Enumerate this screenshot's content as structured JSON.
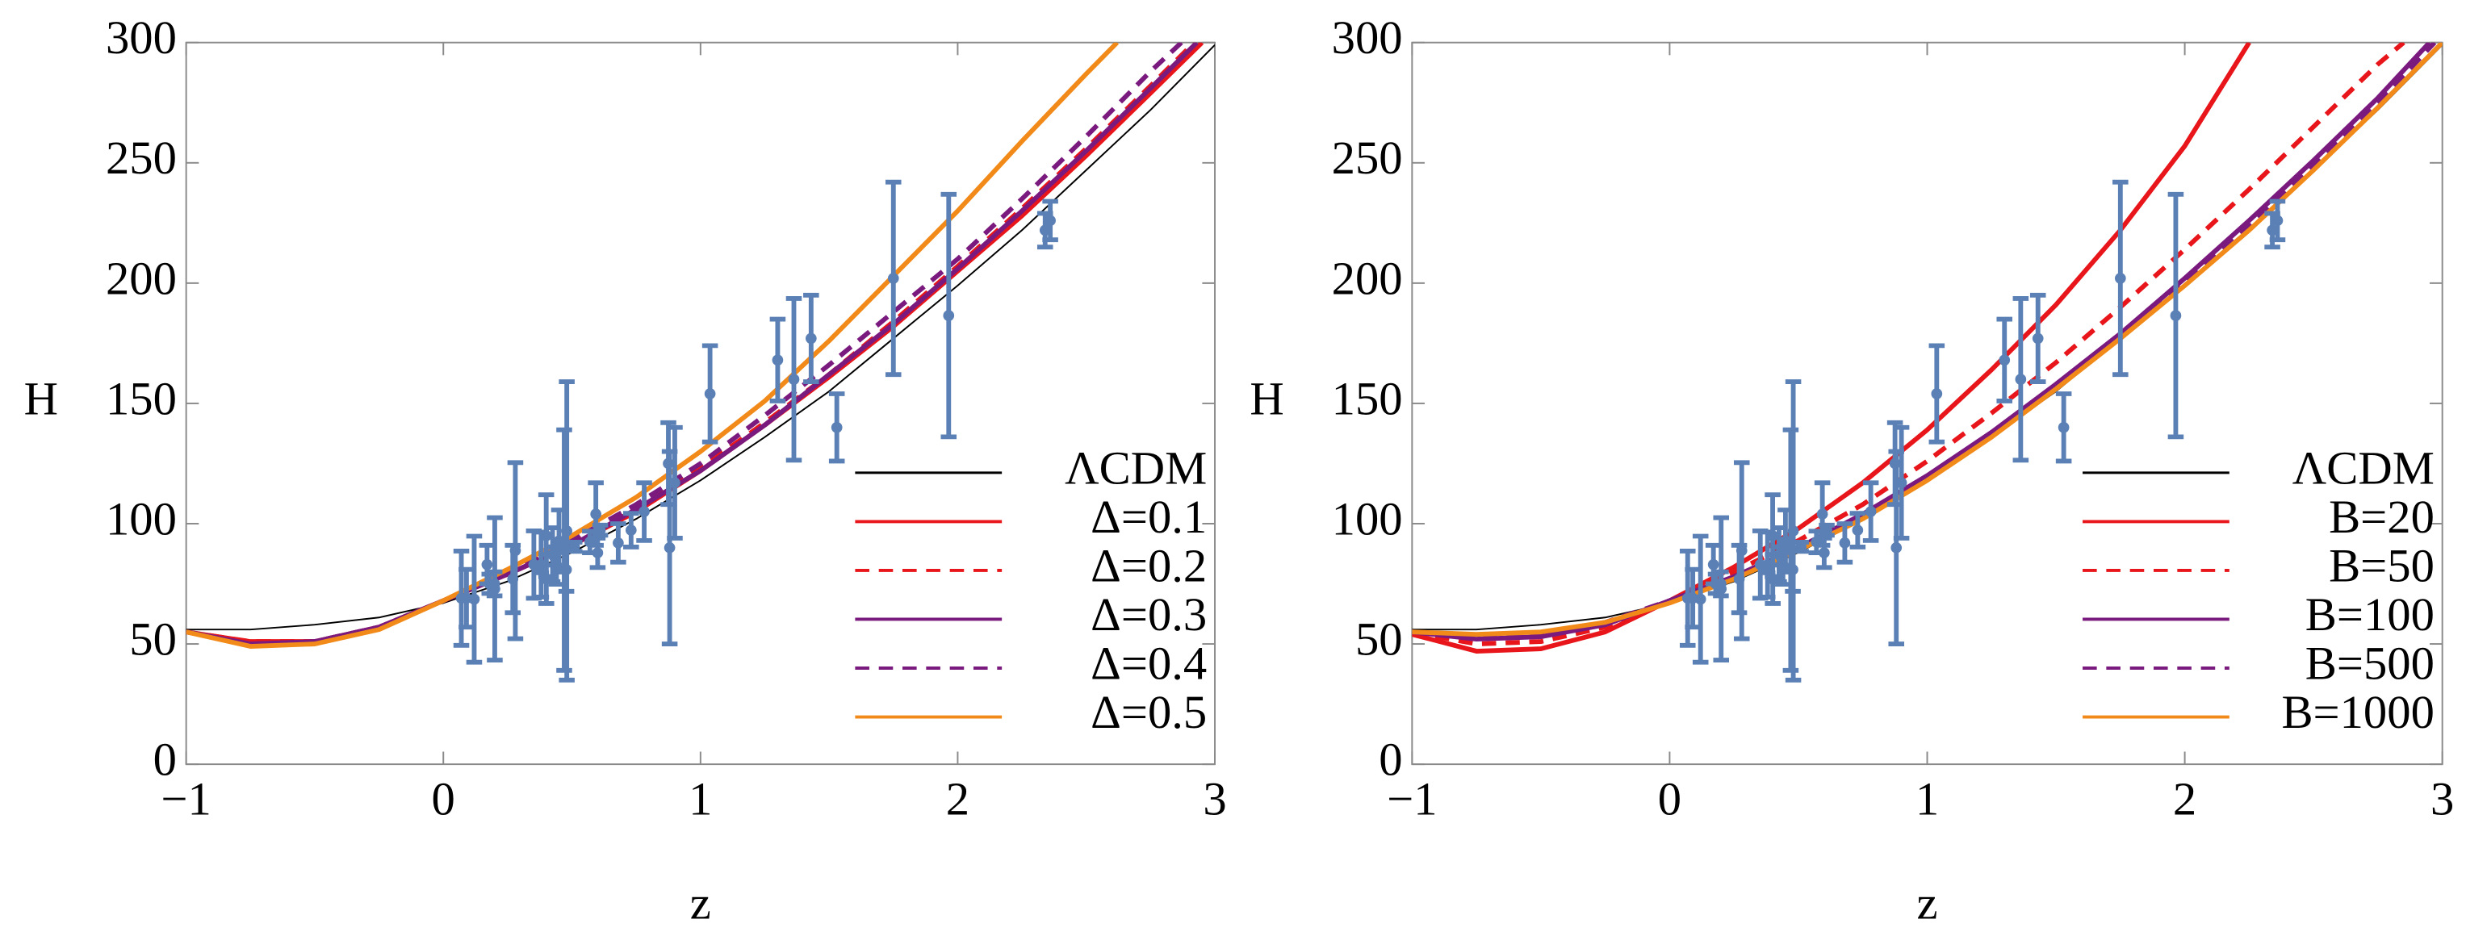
{
  "chart_data": [
    {
      "type": "line",
      "xlabel": "z",
      "ylabel": "H",
      "legend": "lower right",
      "xlim": [
        -1,
        3
      ],
      "ylim": [
        0,
        300
      ],
      "xticks": [
        {
          "value": -1,
          "label": "−1"
        },
        0,
        1,
        2,
        3
      ],
      "yticks": [
        0,
        50,
        100,
        150,
        200,
        250,
        300
      ],
      "series": [
        {
          "name": "ΛCDM",
          "color": "#000000",
          "dashed": false,
          "width": 1,
          "x": [
            -1,
            -0.75,
            -0.5,
            -0.25,
            0,
            0.25,
            0.5,
            0.75,
            1,
            1.25,
            1.5,
            1.75,
            2,
            2.25,
            2.5,
            2.75,
            3
          ],
          "values": [
            56,
            56,
            58,
            61,
            67,
            76,
            88,
            102,
            118,
            136,
            155,
            177,
            199,
            222,
            247,
            272,
            299
          ]
        },
        {
          "name": "Δ=0.1",
          "color": "#e8161b",
          "dashed": false,
          "width": 3,
          "x": [
            -1,
            -0.75,
            -0.5,
            -0.25,
            0,
            0.25,
            0.5,
            0.75,
            1,
            1.25,
            1.5,
            1.75,
            2,
            2.25,
            2.5,
            2.75,
            2.95
          ],
          "values": [
            55,
            51,
            51,
            57,
            68,
            79,
            91,
            105,
            122,
            141,
            161,
            182,
            205,
            228,
            253,
            279,
            300
          ]
        },
        {
          "name": "Δ=0.2",
          "color": "#e8161b",
          "dashed": true,
          "width": 3,
          "x": [
            -1,
            -0.75,
            -0.5,
            -0.25,
            0,
            0.25,
            0.5,
            0.75,
            1,
            1.25,
            1.5,
            1.75,
            2,
            2.25,
            2.5,
            2.75,
            2.92
          ],
          "values": [
            55,
            51,
            51,
            57,
            68,
            79,
            92,
            106,
            123,
            142,
            162,
            184,
            207,
            231,
            256,
            282,
            300
          ]
        },
        {
          "name": "Δ=0.3",
          "color": "#7b1a7e",
          "dashed": false,
          "width": 3,
          "x": [
            -1,
            -0.75,
            -0.5,
            -0.25,
            0,
            0.25,
            0.5,
            0.75,
            1,
            1.25,
            1.5,
            1.75,
            2,
            2.25,
            2.5,
            2.75,
            2.93
          ],
          "values": [
            55,
            50,
            51,
            57,
            68,
            79,
            91,
            106,
            122,
            141,
            162,
            183,
            206,
            230,
            255,
            281,
            300
          ]
        },
        {
          "name": "Δ=0.4",
          "color": "#7b1a7e",
          "dashed": true,
          "width": 3,
          "x": [
            -1,
            -0.75,
            -0.5,
            -0.25,
            0,
            0.25,
            0.5,
            0.75,
            1,
            1.25,
            1.5,
            1.75,
            2,
            2.25,
            2.5,
            2.75,
            2.87
          ],
          "values": [
            55,
            50,
            51,
            57,
            68,
            80,
            93,
            108,
            125,
            145,
            166,
            188,
            210,
            235,
            261,
            288,
            300
          ]
        },
        {
          "name": "Δ=0.5",
          "color": "#f28a1a",
          "dashed": false,
          "width": 3,
          "x": [
            -1,
            -0.75,
            -0.5,
            -0.25,
            0,
            0.25,
            0.5,
            0.75,
            1,
            1.25,
            1.5,
            1.75,
            2,
            2.25,
            2.5,
            2.62
          ],
          "values": [
            55,
            49,
            50,
            56,
            68,
            81,
            95,
            111,
            130,
            151,
            176,
            203,
            230,
            259,
            287,
            300
          ]
        }
      ],
      "points": {
        "color": "#5b80b6",
        "x": [
          0.07,
          0.09,
          0.12,
          0.17,
          0.179,
          0.199,
          0.2,
          0.27,
          0.28,
          0.352,
          0.38,
          0.3802,
          0.4,
          0.4004,
          0.4247,
          0.43,
          0.44,
          0.4497,
          0.47,
          0.4783,
          0.48,
          0.51,
          0.57,
          0.593,
          0.6,
          0.61,
          0.68,
          0.73,
          0.781,
          0.875,
          0.88,
          0.9,
          1.037,
          1.3,
          1.363,
          1.43,
          1.53,
          1.75,
          1.965,
          2.34,
          2.36
        ],
        "values": [
          69,
          69,
          68.6,
          83,
          75,
          75,
          72.9,
          77,
          88.8,
          83,
          81.5,
          83,
          95,
          77,
          87.1,
          86.5,
          82.6,
          92.8,
          89,
          80.9,
          97,
          90.4,
          92.4,
          104,
          87.9,
          97.3,
          92,
          97.3,
          105,
          125,
          90,
          117,
          154,
          168,
          160,
          177,
          140,
          202,
          186.5,
          222,
          226
        ],
        "errors": [
          19.6,
          12,
          26.2,
          8,
          4,
          5,
          29.6,
          14,
          36.6,
          14,
          1.9,
          13.5,
          17,
          10.2,
          11.2,
          3.7,
          7.8,
          12.9,
          50,
          9,
          62,
          1.9,
          4.5,
          13,
          6.1,
          2.1,
          8,
          7,
          12,
          17,
          40,
          23,
          20,
          17,
          33.6,
          18,
          14,
          40,
          50.4,
          7,
          8
        ]
      }
    },
    {
      "type": "line",
      "xlabel": "z",
      "ylabel": "H",
      "legend": "lower right",
      "xlim": [
        -1,
        3
      ],
      "ylim": [
        0,
        300
      ],
      "xticks": [
        {
          "value": -1,
          "label": "−1"
        },
        0,
        1,
        2,
        3
      ],
      "yticks": [
        0,
        50,
        100,
        150,
        200,
        250,
        300
      ],
      "series": [
        {
          "name": "ΛCDM",
          "color": "#000000",
          "dashed": false,
          "width": 1,
          "x": [
            -1,
            -0.75,
            -0.5,
            -0.25,
            0,
            0.25,
            0.5,
            0.75,
            1,
            1.25,
            1.5,
            1.75,
            2,
            2.25,
            2.5,
            2.75,
            3
          ],
          "values": [
            56,
            56,
            58,
            61,
            67,
            76,
            88,
            102,
            118,
            136,
            155,
            177,
            199,
            222,
            247,
            272,
            299
          ]
        },
        {
          "name": "B=20",
          "color": "#e8161b",
          "dashed": false,
          "width": 3,
          "x": [
            -1,
            -0.75,
            -0.5,
            -0.25,
            0,
            0.25,
            0.5,
            0.75,
            1,
            1.25,
            1.5,
            1.75,
            2,
            2.25
          ],
          "values": [
            54,
            47,
            48,
            55,
            68,
            82,
            98,
            117,
            139,
            164,
            191,
            222,
            257,
            300
          ]
        },
        {
          "name": "B=50",
          "color": "#e8161b",
          "dashed": true,
          "width": 3,
          "x": [
            -1,
            -0.75,
            -0.5,
            -0.25,
            0,
            0.25,
            0.5,
            0.75,
            1,
            1.25,
            1.5,
            1.75,
            2,
            2.25,
            2.5,
            2.75,
            2.85
          ],
          "values": [
            55,
            50,
            51,
            57,
            68,
            80,
            93,
            108,
            126,
            146,
            167,
            190,
            214,
            239,
            265,
            291,
            300
          ]
        },
        {
          "name": "B=100",
          "color": "#7b1a7e",
          "dashed": false,
          "width": 3,
          "x": [
            -1,
            -0.75,
            -0.5,
            -0.25,
            0,
            0.25,
            0.5,
            0.75,
            1,
            1.25,
            1.5,
            1.75,
            2,
            2.25,
            2.5,
            2.75,
            2.95
          ],
          "values": [
            55,
            52,
            53,
            58,
            68,
            78,
            90,
            104,
            120,
            138,
            158,
            179,
            202,
            226,
            251,
            277,
            300
          ]
        },
        {
          "name": "B=500",
          "color": "#7b1a7e",
          "dashed": true,
          "width": 3,
          "x": [
            -1,
            -0.75,
            -0.5,
            -0.25,
            0,
            0.25,
            0.5,
            0.75,
            1,
            1.25,
            1.5,
            1.75,
            2,
            2.25,
            2.5,
            2.75,
            2.97
          ],
          "values": [
            55,
            53,
            54,
            59,
            68,
            78,
            89,
            103,
            119,
            137,
            157,
            178,
            200,
            224,
            249,
            275,
            300
          ]
        },
        {
          "name": "B=1000",
          "color": "#f28a1a",
          "dashed": false,
          "width": 3,
          "x": [
            -1,
            -0.75,
            -0.5,
            -0.25,
            0,
            0.25,
            0.5,
            0.75,
            1,
            1.25,
            1.5,
            1.75,
            2,
            2.25,
            2.5,
            2.75,
            3
          ],
          "values": [
            55,
            54,
            55,
            59,
            67,
            77,
            89,
            102,
            118,
            136,
            156,
            177,
            199,
            222,
            247,
            273,
            300
          ]
        }
      ],
      "points": {
        "color": "#5b80b6",
        "x": [
          0.07,
          0.09,
          0.12,
          0.17,
          0.179,
          0.199,
          0.2,
          0.27,
          0.28,
          0.352,
          0.38,
          0.3802,
          0.4,
          0.4004,
          0.4247,
          0.43,
          0.44,
          0.4497,
          0.47,
          0.4783,
          0.48,
          0.51,
          0.57,
          0.593,
          0.6,
          0.61,
          0.68,
          0.73,
          0.781,
          0.875,
          0.88,
          0.9,
          1.037,
          1.3,
          1.363,
          1.43,
          1.53,
          1.75,
          1.965,
          2.34,
          2.36
        ],
        "values": [
          69,
          69,
          68.6,
          83,
          75,
          75,
          72.9,
          77,
          88.8,
          83,
          81.5,
          83,
          95,
          77,
          87.1,
          86.5,
          82.6,
          92.8,
          89,
          80.9,
          97,
          90.4,
          92.4,
          104,
          87.9,
          97.3,
          92,
          97.3,
          105,
          125,
          90,
          117,
          154,
          168,
          160,
          177,
          140,
          202,
          186.5,
          222,
          226
        ],
        "errors": [
          19.6,
          12,
          26.2,
          8,
          4,
          5,
          29.6,
          14,
          36.6,
          14,
          1.9,
          13.5,
          17,
          10.2,
          11.2,
          3.7,
          7.8,
          12.9,
          50,
          9,
          62,
          1.9,
          4.5,
          13,
          6.1,
          2.1,
          8,
          7,
          12,
          17,
          40,
          23,
          20,
          17,
          33.6,
          18,
          14,
          40,
          50.4,
          7,
          8
        ]
      }
    }
  ]
}
